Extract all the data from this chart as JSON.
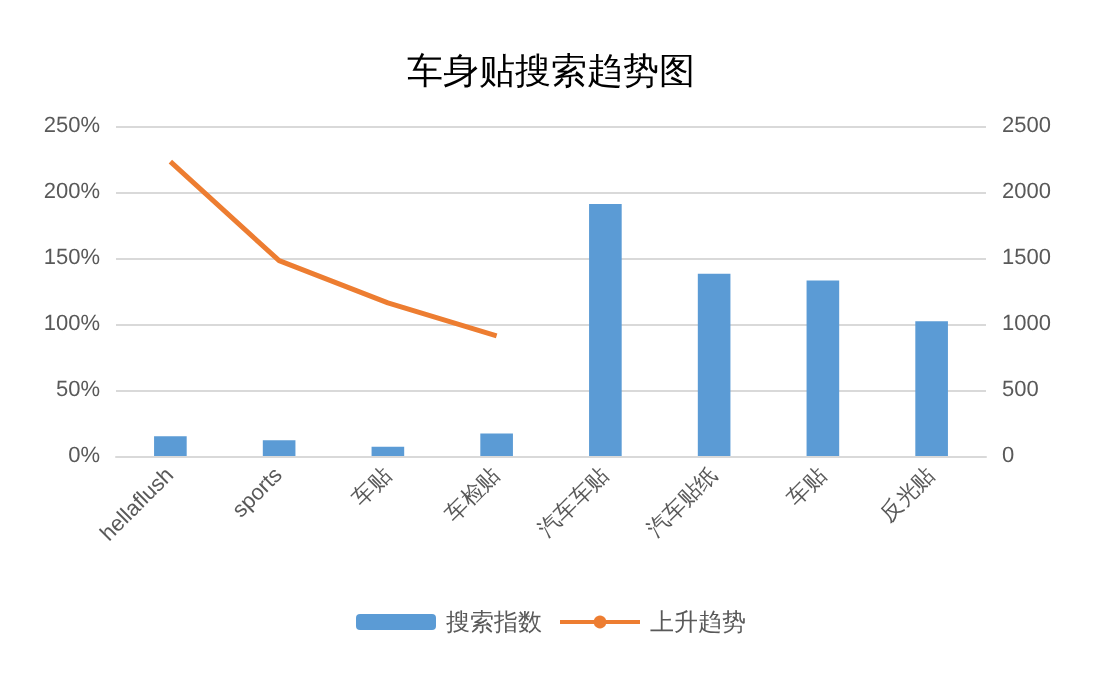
{
  "chart_data": {
    "type": "bar",
    "title": "车身贴搜索趋势图",
    "categories": [
      "hellaflush",
      "sports",
      "车贴",
      "车检贴",
      "汽车车贴",
      "汽车贴纸",
      "车贴",
      "反光贴"
    ],
    "series": [
      {
        "name": "搜索指数",
        "axis": "y2",
        "color": "#5b9bd5",
        "values": [
          150,
          120,
          70,
          170,
          1910,
          1380,
          1330,
          1020
        ]
      },
      {
        "name": "上升趋势",
        "type": "line",
        "color": "#ed7d31",
        "values": [
          223,
          148,
          116,
          91,
          null,
          null,
          null,
          null
        ]
      }
    ],
    "ylim": [
      0,
      250
    ],
    "yticks": [
      {
        "value": 0,
        "label": "0%"
      },
      {
        "value": 50,
        "label": "50%"
      },
      {
        "value": 100,
        "label": "100%"
      },
      {
        "value": 150,
        "label": "150%"
      },
      {
        "value": 200,
        "label": "200%"
      },
      {
        "value": 250,
        "label": "250%"
      }
    ],
    "y2lim": [
      0,
      2500
    ],
    "y2ticks": [
      0,
      500,
      1000,
      1500,
      2000,
      2500
    ],
    "grid": "y",
    "legend": "bottom",
    "marker": "none",
    "line_style": "solid"
  }
}
